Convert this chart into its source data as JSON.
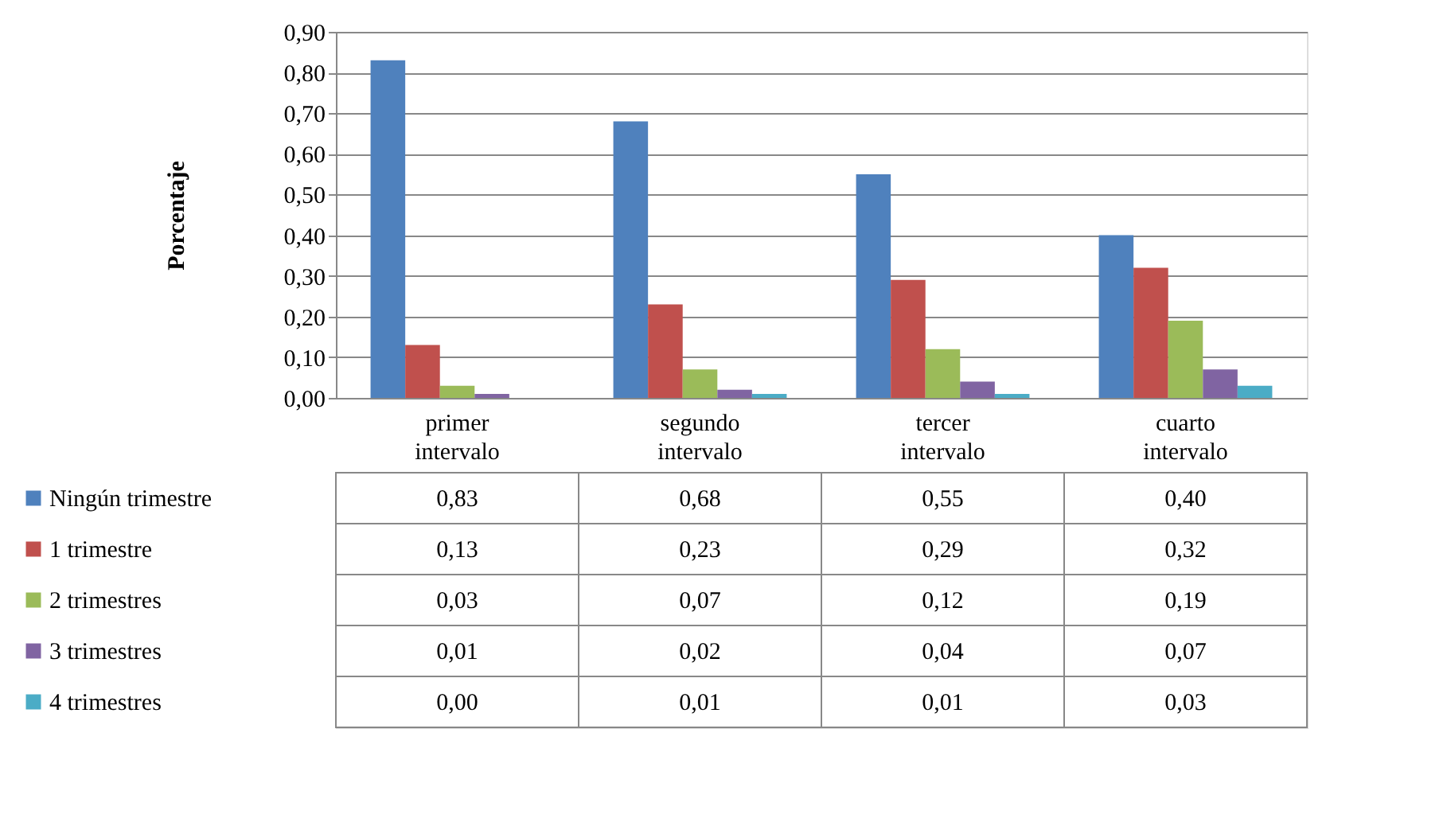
{
  "chart_data": {
    "type": "bar",
    "ylabel": "Porcentaje",
    "categories": [
      "primer intervalo",
      "segundo intervalo",
      "tercer intervalo",
      "cuarto intervalo"
    ],
    "series": [
      {
        "name": "Ningún trimestre",
        "color": "#4f81bd",
        "values": [
          0.83,
          0.68,
          0.55,
          0.4
        ],
        "value_labels": [
          "0,83",
          "0,68",
          "0,55",
          "0,40"
        ]
      },
      {
        "name": "1 trimestre",
        "color": "#c0504d",
        "values": [
          0.13,
          0.23,
          0.29,
          0.32
        ],
        "value_labels": [
          "0,13",
          "0,23",
          "0,29",
          "0,32"
        ]
      },
      {
        "name": "2 trimestres",
        "color": "#9bbb59",
        "values": [
          0.03,
          0.07,
          0.12,
          0.19
        ],
        "value_labels": [
          "0,03",
          "0,07",
          "0,12",
          "0,19"
        ]
      },
      {
        "name": "3 trimestres",
        "color": "#8064a2",
        "values": [
          0.01,
          0.02,
          0.04,
          0.07
        ],
        "value_labels": [
          "0,01",
          "0,02",
          "0,04",
          "0,07"
        ]
      },
      {
        "name": "4 trimestres",
        "color": "#4bacc6",
        "values": [
          0.0,
          0.01,
          0.01,
          0.03
        ],
        "value_labels": [
          "0,00",
          "0,01",
          "0,01",
          "0,03"
        ]
      }
    ],
    "ylim": [
      0,
      0.9
    ],
    "yticks": [
      {
        "value": 0,
        "label": "0,00"
      },
      {
        "value": 0.1,
        "label": "0,10"
      },
      {
        "value": 0.2,
        "label": "0,20"
      },
      {
        "value": 0.3,
        "label": "0,30"
      },
      {
        "value": 0.4,
        "label": "0,40"
      },
      {
        "value": 0.5,
        "label": "0,50"
      },
      {
        "value": 0.6,
        "label": "0,60"
      },
      {
        "value": 0.7,
        "label": "0,70"
      },
      {
        "value": 0.8,
        "label": "0,80"
      },
      {
        "value": 0.9,
        "label": "0,90"
      }
    ],
    "grid": "y",
    "legend": "bottom"
  }
}
